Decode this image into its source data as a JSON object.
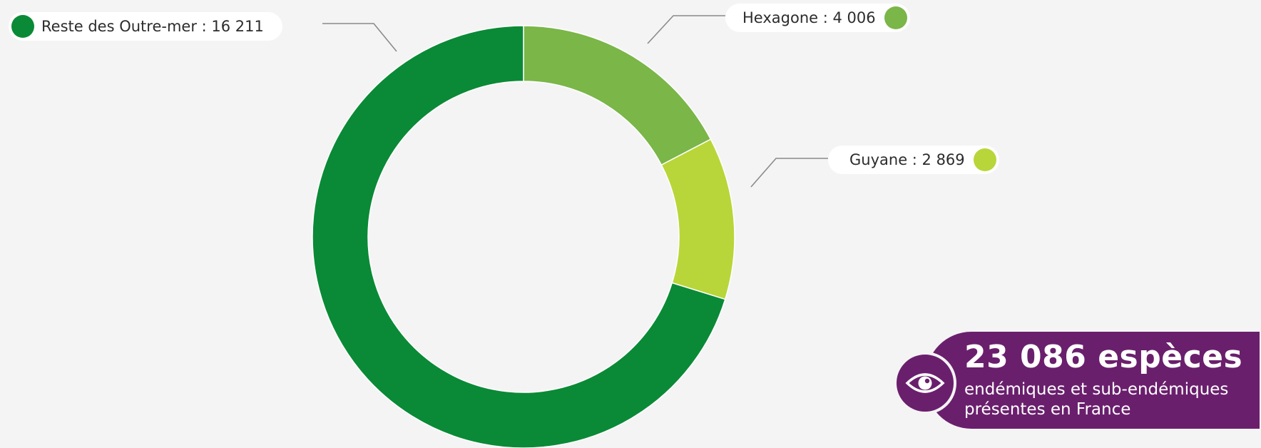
{
  "chart_data": {
    "type": "pie",
    "donut": true,
    "slices": [
      {
        "label": "Hexagone",
        "value": 4006,
        "display": "4 006",
        "color": "#7ab648"
      },
      {
        "label": "Guyane",
        "value": 2869,
        "display": "2 869",
        "color": "#b8d639"
      },
      {
        "label": "Reste des Outre-mer",
        "value": 16211,
        "display": "16 211",
        "color": "#0a8a36"
      }
    ],
    "separator": " : "
  },
  "labels": {
    "reste": "Reste des Outre-mer : 16 211",
    "hexagone": "Hexagone : 4 006",
    "guyane": "Guyane : 2 869"
  },
  "badge": {
    "value": "23 086 espèces",
    "line1": "endémiques et sub-endémiques",
    "line2": "présentes en France",
    "color": "#6a1f6d",
    "icon": "eye-icon"
  }
}
